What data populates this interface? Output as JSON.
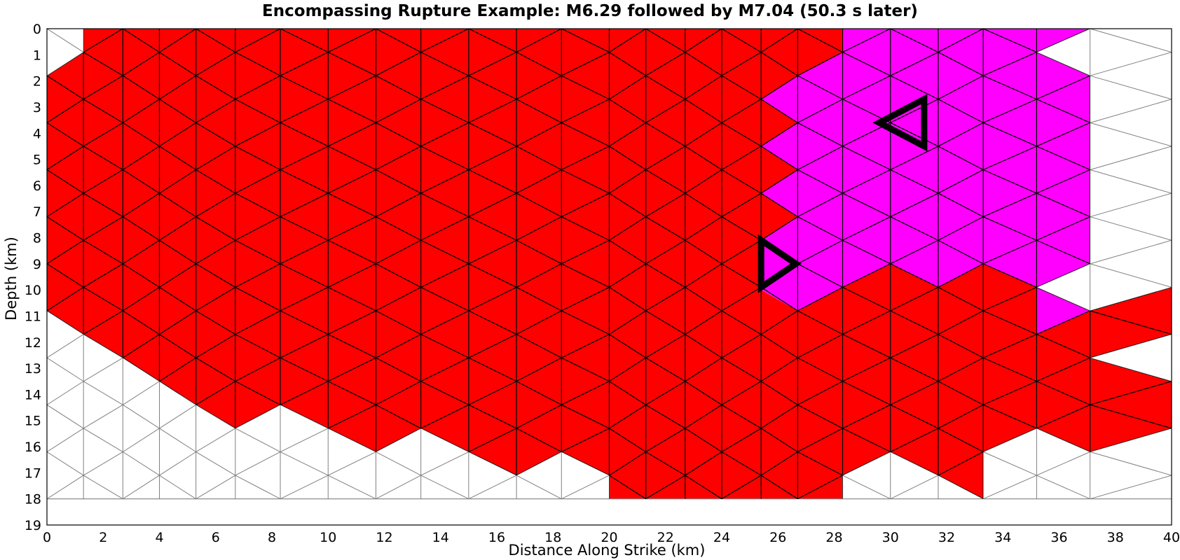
{
  "chart_data": {
    "type": "heatmap",
    "title": "Encompassing Rupture Example: M6.29 followed by M7.04 (50.3 s later)",
    "xlabel": "Distance Along Strike (km)",
    "ylabel": "Depth (km)",
    "xlim": [
      0,
      40
    ],
    "ylim": [
      19,
      0
    ],
    "x_ticks": [
      0,
      2,
      4,
      6,
      8,
      10,
      12,
      14,
      16,
      18,
      20,
      22,
      24,
      26,
      28,
      30,
      32,
      34,
      36,
      38,
      40
    ],
    "y_ticks": [
      0,
      1,
      2,
      3,
      4,
      5,
      6,
      7,
      8,
      9,
      10,
      11,
      12,
      13,
      14,
      15,
      16,
      17,
      18,
      19
    ],
    "mesh_bottom_depth": 18,
    "colors": {
      "rupture_1": "#ff0000",
      "rupture_2": "#ff00ff",
      "unruptured": "#ffffff",
      "mesh_edge_ruptured": "#000000",
      "mesh_edge_unruptured": "#808080"
    },
    "series": [
      {
        "magnitude": "M6.29",
        "color": "#ff0000",
        "hypocenter": {
          "x": 25.4,
          "depth": 9.0,
          "marker": "triangle-right"
        }
      },
      {
        "magnitude": "M7.04",
        "delay_s": 50.3,
        "color": "#ff00ff",
        "hypocenter": {
          "x": 31.2,
          "depth": 3.6,
          "marker": "triangle-left"
        }
      }
    ],
    "rupture_1_region_outline": [
      [
        1.3,
        0
      ],
      [
        28.3,
        0
      ],
      [
        28.3,
        0.9
      ],
      [
        26.7,
        1.8
      ],
      [
        25.4,
        2.7
      ],
      [
        26.7,
        3.6
      ],
      [
        25.4,
        4.5
      ],
      [
        26.7,
        5.4
      ],
      [
        25.4,
        6.3
      ],
      [
        26.7,
        7.2
      ],
      [
        25.4,
        8.1
      ],
      [
        25.4,
        10.0
      ],
      [
        26.7,
        10.8
      ],
      [
        28.3,
        9.9
      ],
      [
        30,
        9.0
      ],
      [
        31.7,
        9.9
      ],
      [
        33.3,
        9.0
      ],
      [
        35.2,
        9.9
      ],
      [
        35.2,
        11.7
      ],
      [
        37.1,
        10.8
      ],
      [
        40,
        9.9
      ],
      [
        40,
        11.7
      ],
      [
        37.1,
        12.6
      ],
      [
        40,
        13.5
      ],
      [
        40,
        15.3
      ],
      [
        37.1,
        16.2
      ],
      [
        35.2,
        15.3
      ],
      [
        33.3,
        16.2
      ],
      [
        33.3,
        18.0
      ],
      [
        31.7,
        17.1
      ],
      [
        30,
        16.2
      ],
      [
        28.3,
        17.1
      ],
      [
        28.3,
        18.0
      ],
      [
        20,
        18.0
      ],
      [
        20,
        17.1
      ],
      [
        18.3,
        16.2
      ],
      [
        16.7,
        17.1
      ],
      [
        15,
        16.2
      ],
      [
        13.3,
        15.3
      ],
      [
        11.7,
        16.2
      ],
      [
        10,
        15.3
      ],
      [
        8.3,
        14.4
      ],
      [
        6.7,
        15.3
      ],
      [
        5.3,
        14.4
      ],
      [
        4,
        13.5
      ],
      [
        2.7,
        12.6
      ],
      [
        1.3,
        11.7
      ],
      [
        0,
        10.8
      ],
      [
        0,
        1.8
      ],
      [
        1.3,
        0.9
      ]
    ],
    "rupture_2_region_outline": [
      [
        28.3,
        0
      ],
      [
        37.1,
        0
      ],
      [
        35.2,
        0.9
      ],
      [
        37.1,
        1.8
      ],
      [
        37.1,
        9.0
      ],
      [
        35.2,
        9.9
      ],
      [
        35.2,
        11.7
      ],
      [
        37.1,
        10.8
      ],
      [
        35.2,
        9.9
      ],
      [
        33.3,
        9.0
      ],
      [
        31.7,
        9.9
      ],
      [
        30,
        9.0
      ],
      [
        28.3,
        9.9
      ],
      [
        26.7,
        10.8
      ],
      [
        25.4,
        10.0
      ],
      [
        25.4,
        8.1
      ],
      [
        26.7,
        7.2
      ],
      [
        25.4,
        6.3
      ],
      [
        26.7,
        5.4
      ],
      [
        25.4,
        4.5
      ],
      [
        26.7,
        3.6
      ],
      [
        25.4,
        2.7
      ],
      [
        26.7,
        1.8
      ],
      [
        28.3,
        0.9
      ]
    ]
  }
}
